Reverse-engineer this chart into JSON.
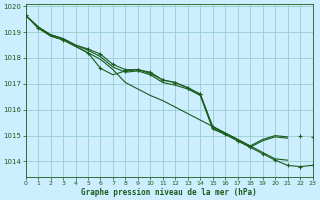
{
  "title": "Graphe pression niveau de la mer (hPa)",
  "bg_color": "#cceeff",
  "grid_color": "#99cccc",
  "line_color": "#1a5c1a",
  "xlim": [
    0,
    23
  ],
  "ylim": [
    1013.4,
    1020.1
  ],
  "yticks": [
    1014,
    1015,
    1016,
    1017,
    1018,
    1019,
    1020
  ],
  "xticks": [
    0,
    1,
    2,
    3,
    4,
    5,
    6,
    7,
    8,
    9,
    10,
    11,
    12,
    13,
    14,
    15,
    16,
    17,
    18,
    19,
    20,
    21,
    22,
    23
  ],
  "series": [
    {
      "x": [
        0,
        1,
        2,
        3,
        4,
        5,
        6,
        7,
        8,
        9,
        10,
        11,
        12,
        13,
        14,
        15,
        16,
        17,
        18,
        19,
        20,
        21,
        22,
        23
      ],
      "y": [
        1019.65,
        1019.2,
        1018.9,
        1018.75,
        1018.5,
        1018.35,
        1018.15,
        1017.75,
        1017.55,
        1017.55,
        1017.4,
        1017.15,
        1017.05,
        1016.85,
        1016.6,
        1015.35,
        1015.1,
        1014.85,
        1014.6,
        1014.85,
        1015.0,
        1014.95,
        null,
        null
      ]
    },
    {
      "x": [
        0,
        1,
        2,
        3,
        4,
        5,
        6,
        7,
        8,
        9,
        10,
        11,
        12,
        13,
        14,
        15,
        16,
        17,
        18,
        19,
        20,
        21,
        22,
        23
      ],
      "y": [
        1019.65,
        1019.2,
        1018.9,
        1018.75,
        1018.5,
        1018.3,
        1018.05,
        1017.65,
        1017.45,
        1017.5,
        1017.35,
        1017.05,
        1016.95,
        1016.8,
        1016.55,
        1015.25,
        1015.05,
        1014.8,
        1014.55,
        1014.8,
        1014.95,
        1014.9,
        null,
        null
      ]
    },
    {
      "x": [
        0,
        1,
        2,
        3,
        4,
        5,
        6,
        7,
        8,
        9,
        10,
        11,
        12,
        13,
        14,
        15,
        16,
        17,
        18,
        19,
        20,
        21,
        22,
        23
      ],
      "y": [
        1019.65,
        1019.2,
        1018.85,
        1018.7,
        1018.45,
        1018.2,
        1017.95,
        1017.55,
        1017.05,
        1016.8,
        1016.55,
        1016.35,
        1016.1,
        1015.85,
        1015.6,
        1015.35,
        1015.1,
        1014.85,
        1014.6,
        1014.35,
        1014.1,
        1014.05,
        null,
        null
      ]
    },
    {
      "x": [
        0,
        1,
        2,
        3,
        4,
        5,
        6,
        7,
        8,
        9,
        10,
        11,
        12,
        13,
        14,
        15,
        16,
        17,
        18,
        19,
        20,
        21,
        22,
        23
      ],
      "y": [
        1019.65,
        1019.15,
        1018.85,
        1018.7,
        1018.45,
        1018.2,
        1017.6,
        1017.35,
        1017.5,
        1017.55,
        1017.45,
        1017.15,
        1017.05,
        1016.85,
        1016.6,
        1015.3,
        1015.05,
        1014.8,
        1014.55,
        1014.3,
        1014.05,
        1013.85,
        1013.8,
        1013.85
      ]
    }
  ],
  "markers": {
    "x": [
      0,
      1,
      3,
      5,
      6,
      8,
      9,
      10,
      11,
      12,
      13,
      14,
      15,
      16,
      17,
      18,
      19,
      20,
      21,
      22,
      23
    ],
    "y": [
      1019.65,
      1019.15,
      1018.7,
      1018.2,
      1017.6,
      1017.5,
      1017.55,
      1017.45,
      1017.15,
      1017.05,
      1016.85,
      1016.6,
      1015.3,
      1015.05,
      1014.8,
      1014.55,
      1014.3,
      1014.05,
      1013.85,
      1013.8,
      1013.85
    ]
  },
  "markers2": {
    "x": [
      5,
      6,
      7,
      8,
      9,
      10,
      11,
      12,
      13,
      14,
      15,
      22,
      23
    ],
    "y": [
      1018.35,
      1018.15,
      1017.75,
      1017.55,
      1017.55,
      1017.4,
      1017.15,
      1017.05,
      1016.85,
      1016.6,
      1015.35,
      1015.0,
      1014.95
    ]
  }
}
